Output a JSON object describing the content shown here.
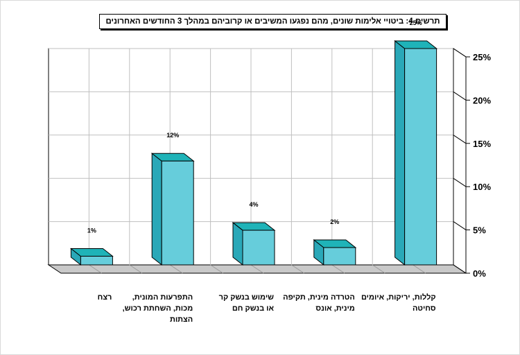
{
  "chart_data": {
    "type": "bar",
    "title": "תרשים 4: ביטויי אלימות שונים, מהם נפגעו המשיבים או קרוביהם במהלך 3 החודשים האחרונים",
    "categories": [
      "קללות, יריקות, איומים סחיטה",
      "הטרדה מינית, תקיפה מינית, אונס",
      "שימוש בנשק קר או בנשק חם",
      "התפרעות המונית, מכות, השחתת רכוש, הצתות",
      "רצח"
    ],
    "values": [
      25,
      2,
      4,
      12,
      1
    ],
    "value_labels": [
      "25%",
      "2%",
      "4%",
      "12%",
      "1%"
    ],
    "yticks": [
      "0%",
      "5%",
      "10%",
      "15%",
      "20%",
      "25%"
    ],
    "ylim": [
      0,
      25
    ],
    "grid": true,
    "three_d": true,
    "colors": {
      "bar_front": "#66cddb",
      "bar_side": "#2aa8b8",
      "bar_top": "#1fb3b8",
      "floor": "#c9c9c9",
      "grid": "#bfbfbf"
    }
  }
}
